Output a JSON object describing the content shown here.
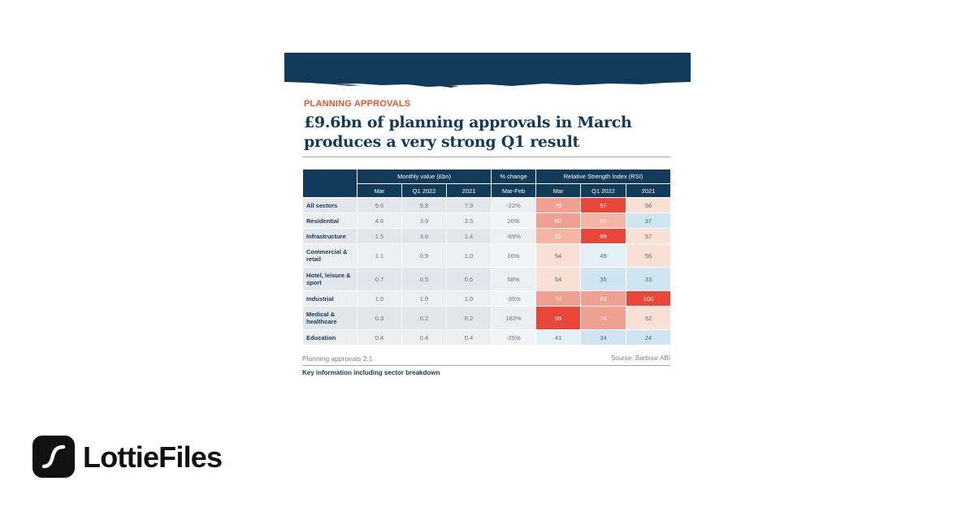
{
  "article": {
    "kicker": "PLANNING APPROVALS",
    "headline_line1": "£9.6bn of planning approvals in March",
    "headline_line2": "produces a very strong Q1 result",
    "footer_left": "Planning approvals 2.1",
    "footer_right": "Source: Barbour ABI",
    "caption": "Key information including sector breakdown"
  },
  "table": {
    "group_headers": {
      "monthly": "Monthly value (£bn)",
      "change": "% change",
      "rsi": "Relative Strength Index (RSI)"
    },
    "sub_headers": {
      "mar": "Mar",
      "q1": "Q1 2022",
      "y2021": "2021",
      "marfeb": "Mar-Feb",
      "rsi_mar": "Mar",
      "rsi_q1": "Q1 2022",
      "rsi_2021": "2021"
    },
    "rows": [
      {
        "sector": "All sectors",
        "mar": "9.6",
        "q1": "9.8",
        "y2021": "7.9",
        "change": "-22%",
        "rsi_mar": 78,
        "rsi_q1": 97,
        "rsi_2021": 56
      },
      {
        "sector": "Residential",
        "mar": "4.6",
        "q1": "3.9",
        "y2021": "3.5",
        "change": "20%",
        "rsi_mar": 80,
        "rsi_q1": 62,
        "rsi_2021": 37
      },
      {
        "sector": "Infrastructure",
        "mar": "1.5",
        "q1": "3.0",
        "y2021": "1.4",
        "change": "-69%",
        "rsi_mar": 61,
        "rsi_q1": 99,
        "rsi_2021": 57
      },
      {
        "sector": "Commercial & retail",
        "mar": "1.1",
        "q1": "0.9",
        "y2021": "1.0",
        "change": "16%",
        "rsi_mar": 54,
        "rsi_q1": 49,
        "rsi_2021": 56
      },
      {
        "sector": "Hotel, leisure & sport",
        "mar": "0.7",
        "q1": "0.5",
        "y2021": "0.6",
        "change": "58%",
        "rsi_mar": 54,
        "rsi_q1": 35,
        "rsi_2021": 33
      },
      {
        "sector": "Industrial",
        "mar": "1.0",
        "q1": "1.0",
        "y2021": "1.0",
        "change": "-35%",
        "rsi_mar": 74,
        "rsi_q1": 83,
        "rsi_2021": 100
      },
      {
        "sector": "Medical & healthcare",
        "mar": "0.3",
        "q1": "0.2",
        "y2021": "0.2",
        "change": "183%",
        "rsi_mar": 98,
        "rsi_q1": 74,
        "rsi_2021": 52
      },
      {
        "sector": "Education",
        "mar": "0.4",
        "q1": "0.4",
        "y2021": "0.4",
        "change": "-25%",
        "rsi_mar": 41,
        "rsi_q1": 34,
        "rsi_2021": 24
      }
    ]
  },
  "brand": {
    "name": "LottieFiles",
    "logo_icon": "lottie-logo-icon"
  },
  "colors": {
    "navy": "#123a5a",
    "accent": "#e4552e",
    "rsi_hot": "#e8473a",
    "rsi_warm": "#f0a090",
    "rsi_light": "#fbe0d6",
    "rsi_cool": "#cfe5f2"
  }
}
